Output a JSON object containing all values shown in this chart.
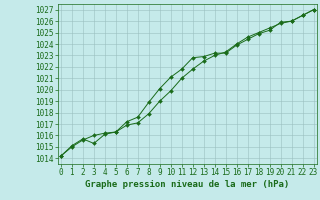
{
  "line1_x": [
    0,
    1,
    2,
    3,
    4,
    5,
    6,
    7,
    8,
    9,
    10,
    11,
    12,
    13,
    14,
    15,
    16,
    17,
    18,
    19,
    20,
    21,
    22,
    23
  ],
  "line1_y": [
    1014.2,
    1015.1,
    1015.7,
    1015.3,
    1016.1,
    1016.3,
    1017.2,
    1017.6,
    1018.9,
    1020.1,
    1021.1,
    1021.8,
    1022.8,
    1022.9,
    1023.2,
    1023.2,
    1023.9,
    1024.4,
    1024.9,
    1025.2,
    1025.9,
    1026.0,
    1026.5,
    1027.0
  ],
  "line2_x": [
    0,
    1,
    2,
    3,
    4,
    5,
    6,
    7,
    8,
    9,
    10,
    11,
    12,
    13,
    14,
    15,
    16,
    17,
    18,
    19,
    20,
    21,
    22,
    23
  ],
  "line2_y": [
    1014.2,
    1015.0,
    1015.6,
    1016.0,
    1016.2,
    1016.3,
    1016.9,
    1017.1,
    1017.9,
    1019.0,
    1019.9,
    1021.0,
    1021.8,
    1022.5,
    1023.0,
    1023.3,
    1024.0,
    1024.6,
    1025.0,
    1025.4,
    1025.8,
    1026.0,
    1026.5,
    1027.0
  ],
  "line_color": "#1a6b1a",
  "marker": "D",
  "marker_size": 2.0,
  "marker_lw": 0.3,
  "line_width": 0.7,
  "bg_color": "#c5eaea",
  "grid_color": "#9bbfbf",
  "text_color": "#1a6b1a",
  "ylim": [
    1013.5,
    1027.5
  ],
  "xlim": [
    -0.3,
    23.3
  ],
  "yticks": [
    1014,
    1015,
    1016,
    1017,
    1018,
    1019,
    1020,
    1021,
    1022,
    1023,
    1024,
    1025,
    1026,
    1027
  ],
  "xticks": [
    0,
    1,
    2,
    3,
    4,
    5,
    6,
    7,
    8,
    9,
    10,
    11,
    12,
    13,
    14,
    15,
    16,
    17,
    18,
    19,
    20,
    21,
    22,
    23
  ],
  "xlabel": "Graphe pression niveau de la mer (hPa)",
  "tick_fontsize": 5.5,
  "label_fontsize": 6.5,
  "fig_width": 3.2,
  "fig_height": 2.0,
  "dpi": 100
}
